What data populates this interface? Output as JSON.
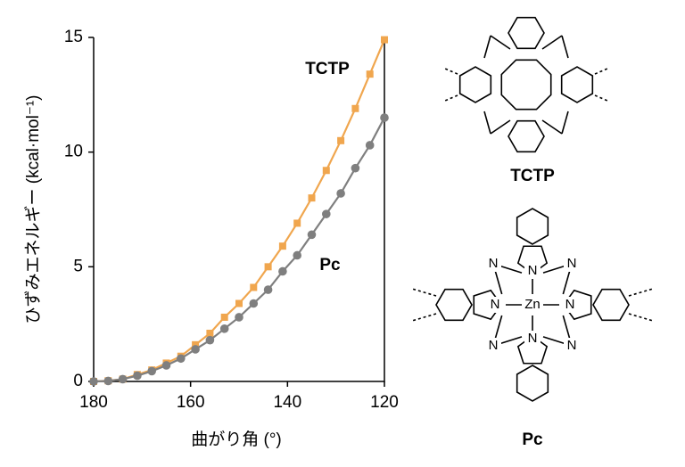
{
  "chart_data": {
    "type": "line",
    "x": [
      180,
      177,
      174,
      171,
      168,
      165,
      162,
      159,
      156,
      153,
      150,
      147,
      144,
      141,
      138,
      135,
      132,
      129,
      126,
      123,
      120
    ],
    "series": [
      {
        "name": "TCTP",
        "color": "#f0a64e",
        "marker": "square",
        "values": [
          0,
          0.03,
          0.1,
          0.3,
          0.5,
          0.8,
          1.1,
          1.6,
          2.1,
          2.8,
          3.4,
          4.1,
          5.0,
          5.9,
          6.9,
          8.0,
          9.2,
          10.5,
          11.9,
          13.4,
          14.9
        ]
      },
      {
        "name": "Pc",
        "color": "#7f7f7f",
        "marker": "circle",
        "values": [
          0,
          0.02,
          0.1,
          0.25,
          0.45,
          0.7,
          1.0,
          1.4,
          1.8,
          2.3,
          2.8,
          3.4,
          4.0,
          4.8,
          5.5,
          6.4,
          7.3,
          8.2,
          9.3,
          10.3,
          11.5
        ]
      }
    ],
    "xlim": [
      180,
      120
    ],
    "xticks": [
      180,
      160,
      140,
      120
    ],
    "ylim": [
      0,
      15
    ],
    "yticks": [
      0,
      5,
      10,
      15
    ],
    "xlabel": "曲がり角 (°)",
    "ylabel": "ひずみエネルギー (kcal·mol⁻¹)",
    "annotations": [
      "TCTP",
      "Pc"
    ]
  },
  "structures": {
    "tctp_label": "TCTP",
    "pc_label": "Pc",
    "pc_atoms": [
      "N",
      "N",
      "N",
      "N",
      "N",
      "N",
      "N",
      "N",
      "Zn"
    ]
  }
}
